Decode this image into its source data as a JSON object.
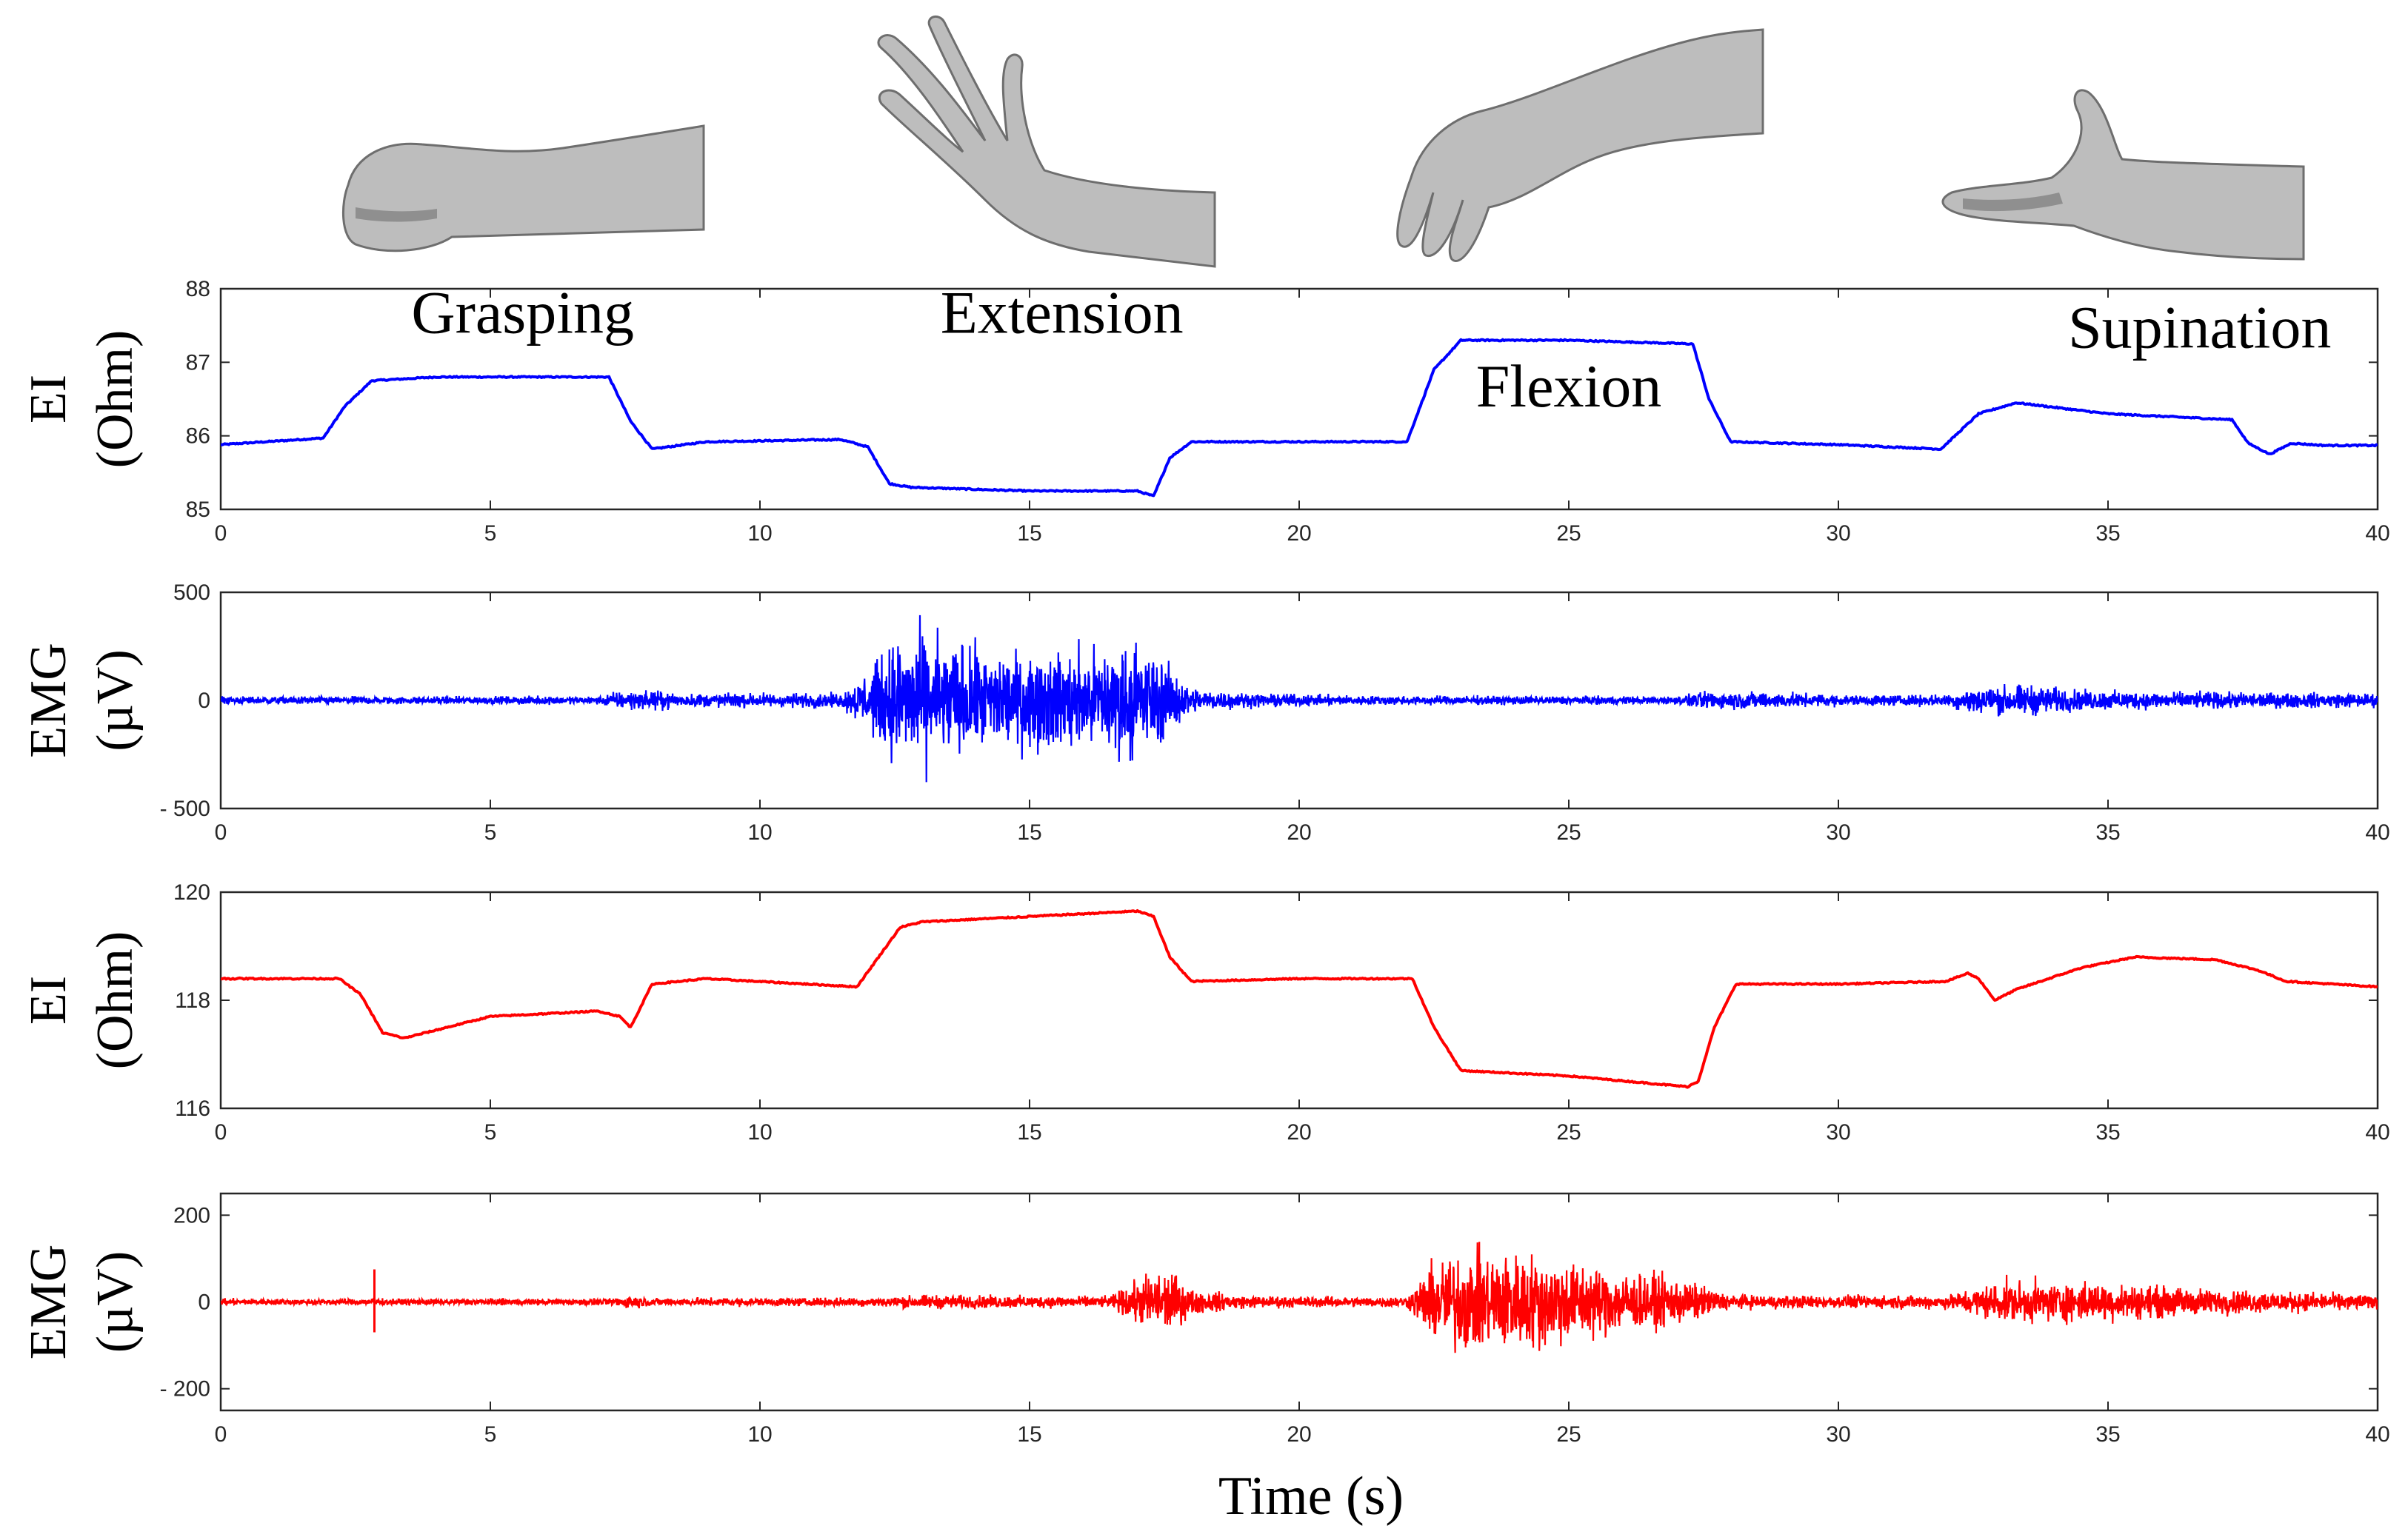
{
  "gestures": [
    "Grasping",
    "Extension",
    "Flexion",
    "Supination"
  ],
  "xlabel": "Time (s)",
  "hand_icons": [
    "fist-hand-icon",
    "extended-hand-icon",
    "flexed-hand-icon",
    "supinated-hand-icon"
  ],
  "chart_data": [
    {
      "type": "line",
      "ylabel": [
        "EI",
        "(Ohm)"
      ],
      "color": "#0000ff",
      "xlim": [
        0,
        40
      ],
      "ylim": [
        85,
        88
      ],
      "xticks": [
        0,
        5,
        10,
        15,
        20,
        25,
        30,
        35,
        40
      ],
      "yticks": [
        85,
        86,
        87,
        88
      ],
      "series": [
        {
          "x": [
            0,
            1.9,
            2.3,
            2.8,
            4,
            7.2,
            7.6,
            8,
            9,
            11.5,
            12,
            12.4,
            12.8,
            15,
            17,
            17.3,
            17.6,
            18,
            20,
            22,
            22.5,
            23,
            25,
            27.3,
            27.6,
            28,
            30,
            31.9,
            32.6,
            33.3,
            35,
            37.3,
            37.6,
            38,
            38.4,
            39,
            40
          ],
          "y": [
            85.88,
            85.97,
            86.4,
            86.75,
            86.8,
            86.8,
            86.2,
            85.82,
            85.92,
            85.95,
            85.85,
            85.35,
            85.3,
            85.25,
            85.25,
            85.18,
            85.7,
            85.92,
            85.92,
            85.92,
            86.9,
            87.3,
            87.3,
            87.25,
            86.5,
            85.92,
            85.88,
            85.82,
            86.3,
            86.45,
            86.3,
            86.22,
            85.9,
            85.75,
            85.9,
            85.87,
            85.87
          ]
        }
      ],
      "annotations": [
        {
          "text": "Grasping",
          "x": 5.6,
          "y": 87.4
        },
        {
          "text": "Extension",
          "x": 15.6,
          "y": 87.4
        },
        {
          "text": "Flexion",
          "x": 25,
          "y": 86.4
        },
        {
          "text": "Supination",
          "x": 36.7,
          "y": 87.2
        }
      ]
    },
    {
      "type": "line",
      "ylabel": [
        "EMG",
        "(µV)"
      ],
      "color": "#0000ff",
      "xlim": [
        0,
        40
      ],
      "ylim": [
        -500,
        500
      ],
      "xticks": [
        0,
        5,
        10,
        15,
        20,
        25,
        30,
        35,
        40
      ],
      "yticks": [
        -500,
        0,
        500
      ],
      "ytick_labels": [
        "- 500",
        "0",
        "500"
      ],
      "envelope": {
        "x": [
          0,
          7,
          7.3,
          8,
          8.5,
          11.5,
          12,
          12.5,
          13,
          14,
          15,
          16,
          17,
          17.5,
          18,
          19,
          21,
          27,
          27.5,
          28.5,
          30,
          32,
          32.5,
          33.5,
          34.5,
          36,
          37.5,
          40
        ],
        "amp": [
          25,
          25,
          55,
          60,
          45,
          45,
          180,
          380,
          420,
          320,
          300,
          320,
          360,
          250,
          80,
          45,
          30,
          25,
          55,
          55,
          35,
          35,
          90,
          100,
          65,
          55,
          50,
          45
        ]
      }
    },
    {
      "type": "line",
      "ylabel": [
        "EI",
        "(Ohm)"
      ],
      "color": "#ff0000",
      "xlim": [
        0,
        40
      ],
      "ylim": [
        116,
        120
      ],
      "xticks": [
        0,
        5,
        10,
        15,
        20,
        25,
        30,
        35,
        40
      ],
      "yticks": [
        116,
        118,
        120
      ],
      "series": [
        {
          "x": [
            0,
            2.2,
            2.6,
            3,
            3.4,
            5,
            7,
            7.4,
            7.6,
            8,
            9,
            11.8,
            12.2,
            12.6,
            13,
            15,
            17,
            17.3,
            17.6,
            18,
            20,
            22.1,
            22.5,
            23,
            25,
            27.2,
            27.4,
            27.7,
            28.1,
            30,
            32,
            32.4,
            32.6,
            32.9,
            33.3,
            34.5,
            35.5,
            37,
            37.8,
            38.3,
            40
          ],
          "y": [
            118.4,
            118.4,
            118.1,
            117.4,
            117.3,
            117.7,
            117.8,
            117.7,
            117.5,
            118.3,
            118.4,
            118.25,
            118.8,
            119.35,
            119.45,
            119.55,
            119.65,
            119.55,
            118.8,
            118.35,
            118.4,
            118.4,
            117.5,
            116.7,
            116.6,
            116.4,
            116.5,
            117.5,
            118.3,
            118.3,
            118.35,
            118.5,
            118.4,
            118,
            118.2,
            118.6,
            118.8,
            118.75,
            118.55,
            118.35,
            118.25
          ]
        }
      ]
    },
    {
      "type": "line",
      "ylabel": [
        "EMG",
        "(µV)"
      ],
      "color": "#ff0000",
      "xlim": [
        0,
        40
      ],
      "ylim": [
        -250,
        250
      ],
      "xticks": [
        0,
        5,
        10,
        15,
        20,
        25,
        30,
        35,
        40
      ],
      "yticks": [
        -200,
        0,
        200
      ],
      "ytick_labels": [
        "- 200",
        "0",
        "200"
      ],
      "spikes": [
        {
          "x": 2.85,
          "top": 75,
          "bottom": -70
        }
      ],
      "envelope": {
        "x": [
          0,
          7.2,
          7.6,
          8,
          12,
          13,
          16.5,
          17.2,
          17.6,
          18,
          19,
          21,
          22,
          22.5,
          23,
          24.5,
          26,
          27,
          27.5,
          28,
          30,
          32,
          33,
          35,
          37,
          40
        ],
        "amp": [
          10,
          10,
          22,
          12,
          14,
          22,
          18,
          90,
          100,
          40,
          20,
          16,
          18,
          130,
          160,
          150,
          95,
          75,
          50,
          22,
          20,
          22,
          65,
          60,
          40,
          22
        ]
      }
    }
  ]
}
